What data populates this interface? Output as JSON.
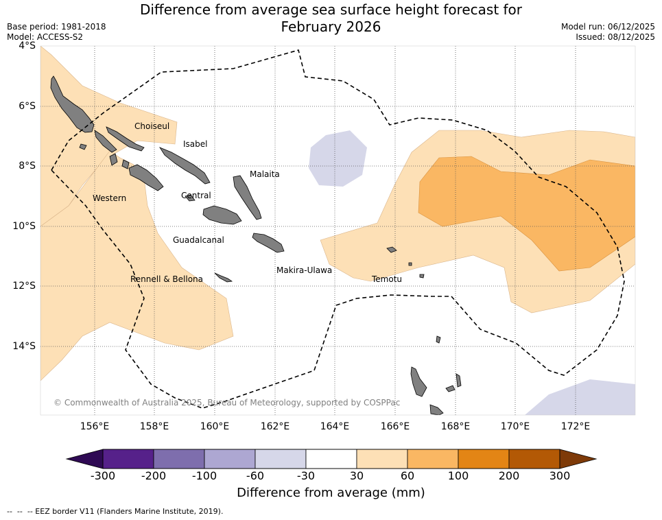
{
  "title": {
    "line1": "Difference from average sea surface height forecast for",
    "line2": "February 2026"
  },
  "meta": {
    "base_period": "Base period: 1981-2018",
    "model": "Model: ACCESS-S2",
    "model_run": "Model run: 06/12/2025",
    "issued": "Issued: 08/12/2025"
  },
  "axes": {
    "lat_labels": [
      "4°S",
      "6°S",
      "8°S",
      "10°S",
      "12°S",
      "14°S"
    ],
    "lon_labels": [
      "156°E",
      "158°E",
      "160°E",
      "162°E",
      "164°E",
      "166°E",
      "168°E",
      "170°E",
      "172°E"
    ]
  },
  "places": {
    "choiseul": "Choiseul",
    "isabel": "Isabel",
    "malaita": "Malaita",
    "western": "Western",
    "central": "Central",
    "guadalcanal": "Guadalcanal",
    "rennell": "Rennell & Bellona",
    "makira": "Makira-Ulawa",
    "temotu": "Temotu"
  },
  "copyright": "© Commonwealth of Australia 2025, Bureau of Meteorology, supported by COSPPac",
  "colorbar": {
    "ticks": [
      "-300",
      "-200",
      "-100",
      "-60",
      "-30",
      "30",
      "60",
      "100",
      "200",
      "300"
    ],
    "colors": [
      "#56218a",
      "#7e6ead",
      "#ada7d2",
      "#d6d7e9",
      "#ffffff",
      "#fde0b6",
      "#fab763",
      "#e38515",
      "#b35905"
    ],
    "extend_low": "#2f0a54",
    "extend_high": "#7e3a08",
    "title": "Difference from average (mm)"
  },
  "footer": "--  --  -- EEZ border V11 (Flanders Marine Institute, 2019)."
}
